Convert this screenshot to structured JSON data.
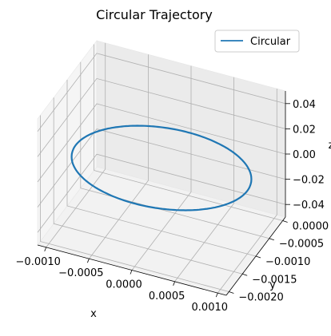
{
  "chart_data": {
    "type": "line",
    "title": "Circular Trajectory",
    "xlabel": "x",
    "ylabel": "y",
    "zlabel": "z",
    "legend_position": "top-right",
    "grid": true,
    "xlim": [
      -0.0011,
      0.0011
    ],
    "ylim": [
      -0.0021,
      0.0001
    ],
    "zlim": [
      -0.05,
      0.05
    ],
    "x_ticks": [
      {
        "value": -0.001,
        "label": "−0.0010"
      },
      {
        "value": -0.0005,
        "label": "−0.0005"
      },
      {
        "value": 0.0,
        "label": "0.0000"
      },
      {
        "value": 0.0005,
        "label": "0.0005"
      },
      {
        "value": 0.001,
        "label": "0.0010"
      }
    ],
    "y_ticks": [
      {
        "value": -0.002,
        "label": "−0.0020"
      },
      {
        "value": -0.0015,
        "label": "−0.0015"
      },
      {
        "value": -0.001,
        "label": "−0.0010"
      },
      {
        "value": -0.0005,
        "label": "−0.0005"
      },
      {
        "value": 0.0,
        "label": "0.0000"
      }
    ],
    "z_ticks": [
      {
        "value": -0.04,
        "label": "−0.04"
      },
      {
        "value": -0.02,
        "label": "−0.02"
      },
      {
        "value": 0.0,
        "label": "0.00"
      },
      {
        "value": 0.02,
        "label": "0.02"
      },
      {
        "value": 0.04,
        "label": "0.04"
      }
    ],
    "series": [
      {
        "name": "Circular",
        "color": "#1f77b4",
        "radius": 0.001,
        "center": [
          0,
          -0.001,
          0
        ]
      }
    ]
  },
  "legend": {
    "label": "Circular"
  }
}
